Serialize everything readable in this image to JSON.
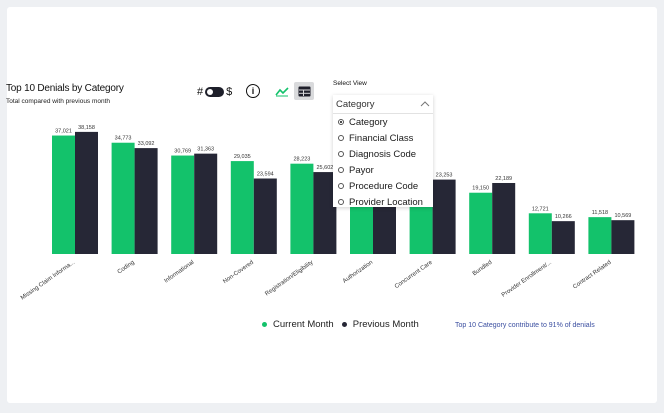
{
  "header": {
    "title": "Top 10 Denials by Category",
    "subtitle": "Total compared with previous month",
    "toggle_left": "#",
    "toggle_right": "$",
    "info_glyph": "i"
  },
  "view_buttons": [
    {
      "name": "line-chart-icon",
      "active": false
    },
    {
      "name": "table-icon",
      "active": true
    }
  ],
  "select_view": {
    "label": "Select View",
    "current": "Category",
    "options": [
      {
        "label": "Category",
        "selected": true
      },
      {
        "label": "Financial Class",
        "selected": false
      },
      {
        "label": "Diagnosis Code",
        "selected": false
      },
      {
        "label": "Payor",
        "selected": false
      },
      {
        "label": "Procedure Code",
        "selected": false
      },
      {
        "label": "Provider Location",
        "selected": false
      }
    ]
  },
  "legend": {
    "current": "Current Month",
    "previous": "Previous Month"
  },
  "footnote": "Top 10 Category contribute to 91% of denials",
  "colors": {
    "current": "#13c26b",
    "previous": "#262736",
    "accent": "#3a4ea0"
  },
  "chart_data": {
    "type": "bar",
    "title": "Top 10 Denials by Category",
    "subtitle": "Total compared with previous month",
    "categories": [
      "Missing Claim Informa...",
      "Coding",
      "Informational",
      "Non-Covered",
      "Registration/Eligibility",
      "Authorization",
      "Concurrent Care",
      "Bundled",
      "Provider Enrollment/...",
      "Contract Related"
    ],
    "series": [
      {
        "name": "Current Month",
        "values": [
          37021,
          34773,
          30769,
          29035,
          28223,
          27800,
          22000,
          19150,
          12721,
          11518
        ],
        "labels": [
          "37,021",
          "34,773",
          "30,769",
          "29,035",
          "28,223",
          "",
          "",
          "19,150",
          "12,721",
          "11,518"
        ]
      },
      {
        "name": "Previous Month",
        "values": [
          38158,
          33092,
          31363,
          23594,
          25602,
          27000,
          23253,
          22189,
          10266,
          10569
        ],
        "labels": [
          "38,158",
          "33,092",
          "31,363",
          "23,594",
          "25,602",
          "",
          "23,253",
          "22,189",
          "10,266",
          "10,569"
        ]
      }
    ],
    "ylim": [
      0,
      40000
    ],
    "grid": false,
    "legend": "bottom"
  }
}
